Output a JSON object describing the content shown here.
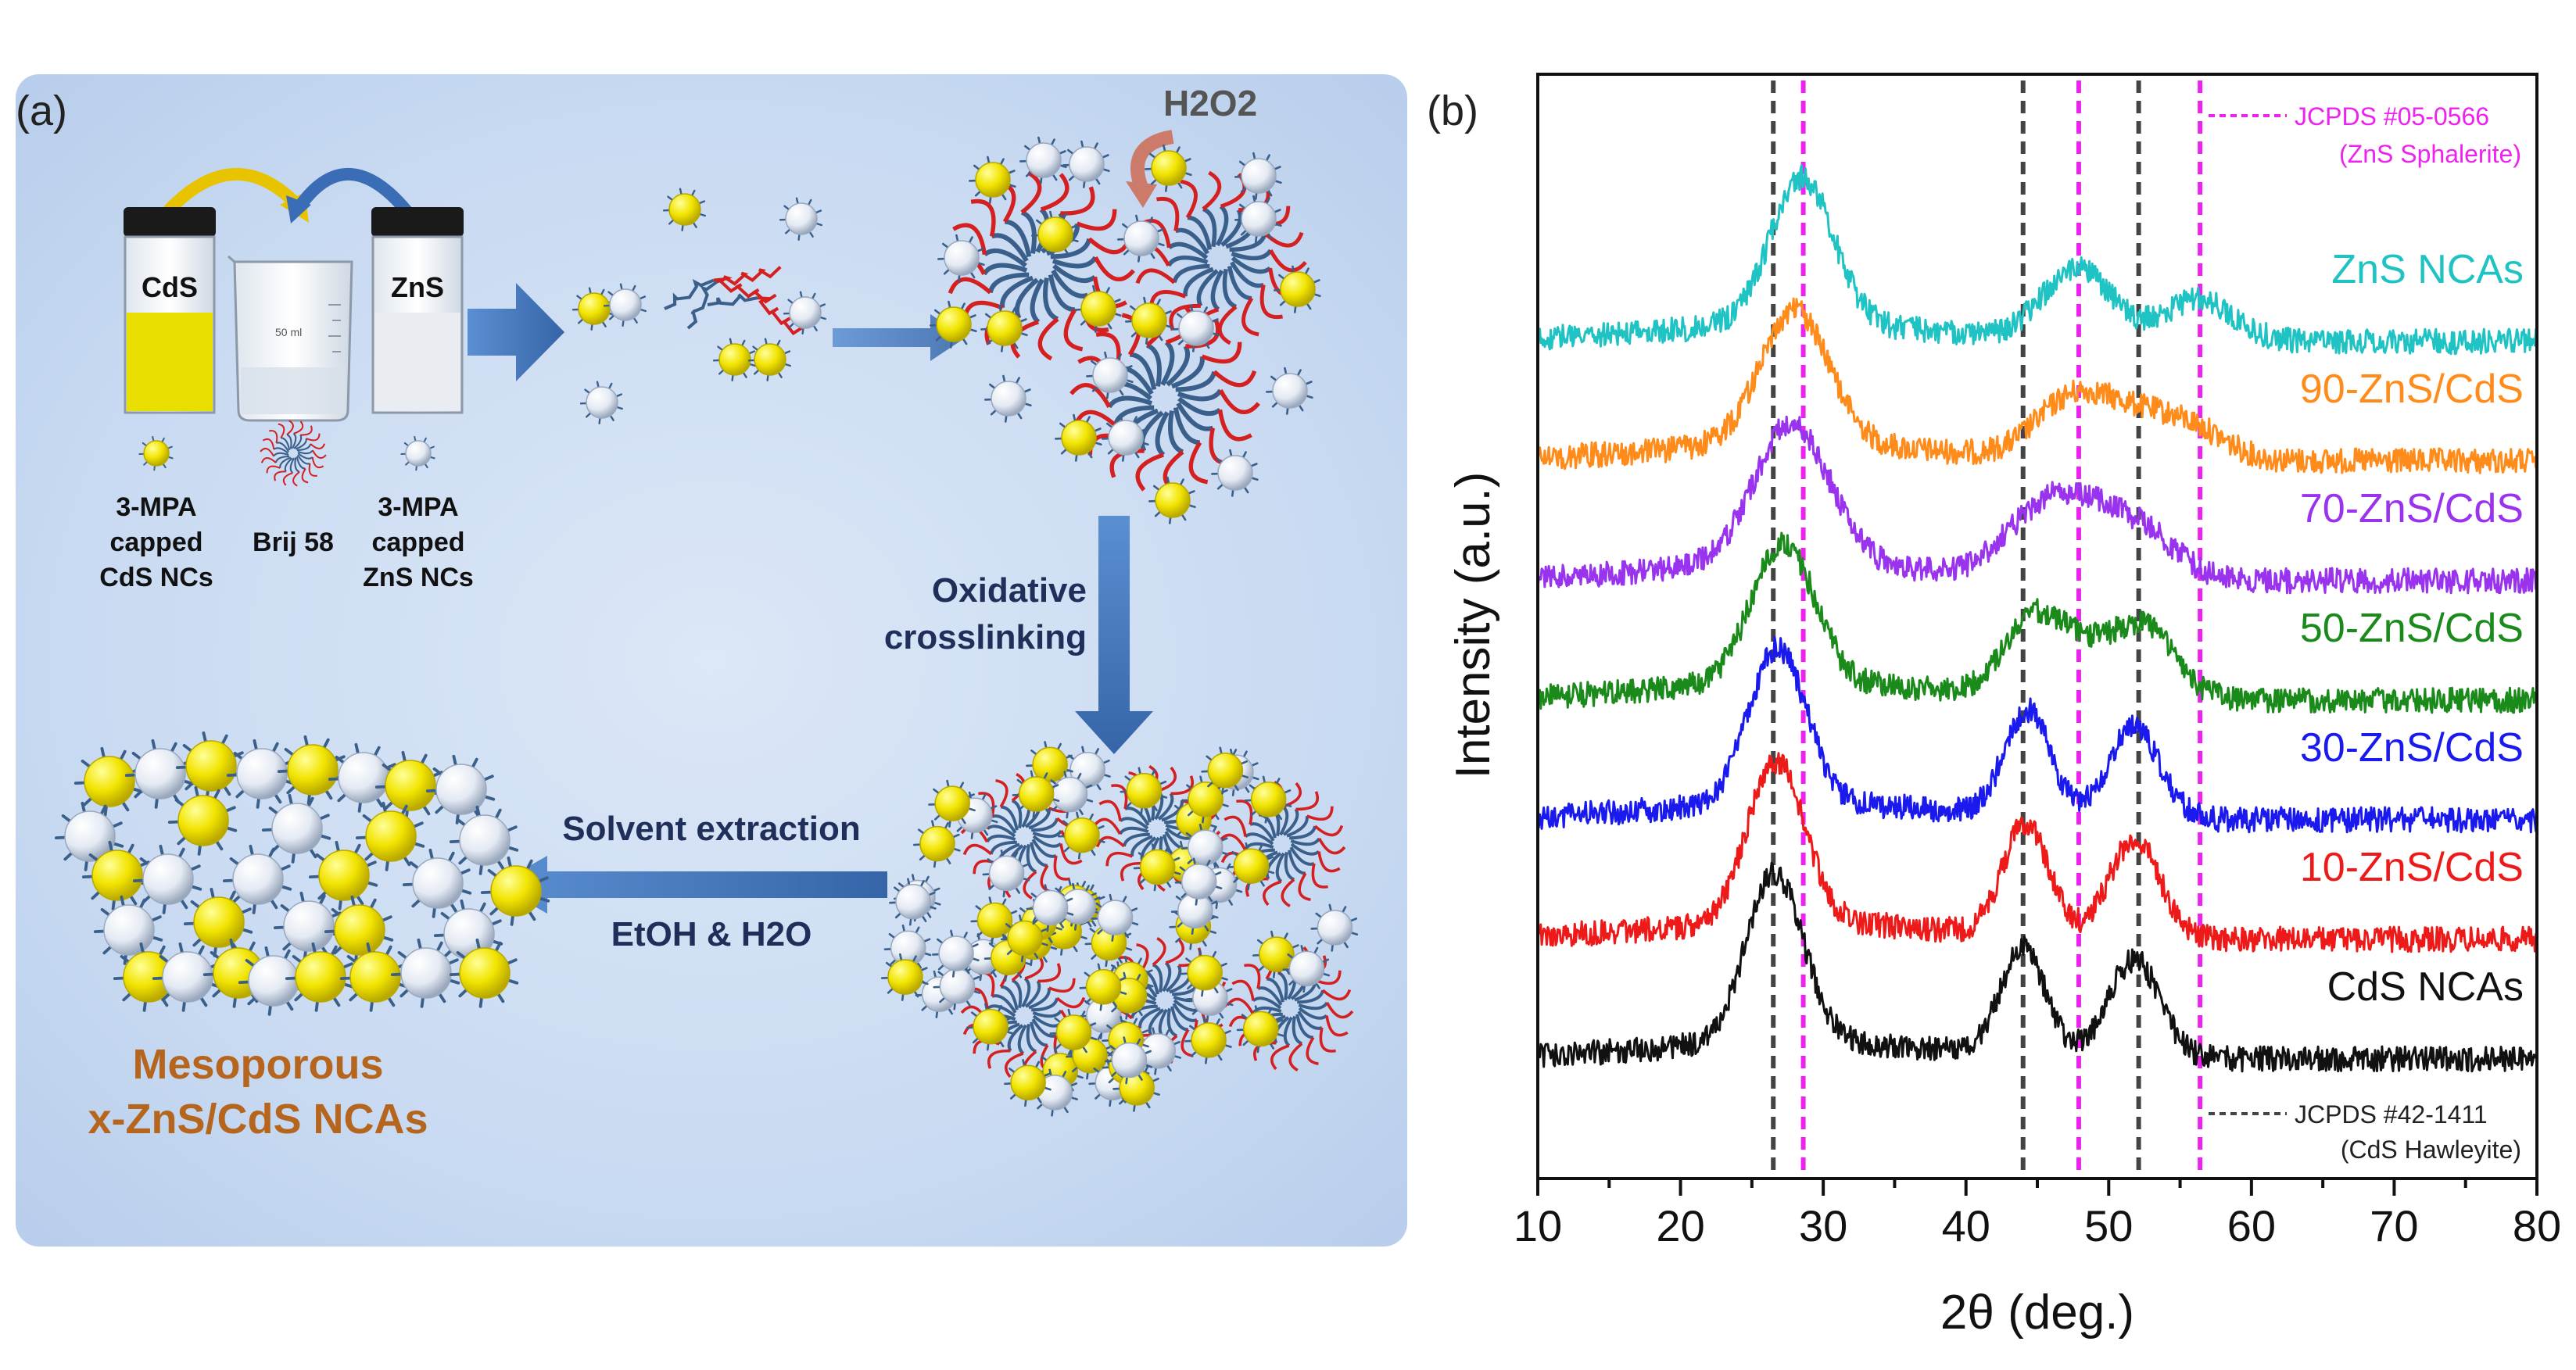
{
  "panel_a": {
    "label": "(a)",
    "oxidant": "H2O2",
    "vials": {
      "cds": "CdS",
      "zns": "ZnS",
      "beaker_volume": "50 ml"
    },
    "legend": {
      "cds_nc": [
        "3-MPA",
        "capped",
        "CdS NCs"
      ],
      "brij": "Brij 58",
      "zns_nc": [
        "3-MPA",
        "capped",
        "ZnS NCs"
      ]
    },
    "step_crosslink": [
      "Oxidative",
      "crosslinking"
    ],
    "step_extract": "Solvent extraction",
    "step_solvents": "EtOH & H2O",
    "product": [
      "Mesoporous",
      "x-ZnS/CdS NCAs"
    ],
    "colors": {
      "cds_particle": "#f2e400",
      "zns_particle": "#eef2f8",
      "polymer_red": "#d42020",
      "polymer_blue": "#3a5f8a",
      "arrow": "#3f6fae",
      "text_navy": "#1f2f5a",
      "product_text": "#b5651d"
    }
  },
  "chart_data": {
    "type": "line",
    "panel_label": "(b)",
    "title": "",
    "xlabel": "2θ (deg.)",
    "ylabel": "Intensity (a.u.)",
    "xlim": [
      10,
      80
    ],
    "xticks": [
      "10",
      "20",
      "30",
      "40",
      "50",
      "60",
      "70",
      "80"
    ],
    "yticks": "none",
    "grid": false,
    "series": [
      {
        "name": "ZnS NCAs",
        "color": "#1fc3c3",
        "offset": 6,
        "peaks": [
          [
            28.5,
            1.05,
            2.2
          ],
          [
            47.8,
            0.5,
            2.4
          ],
          [
            56.3,
            0.3,
            2.4
          ]
        ]
      },
      {
        "name": "90-ZnS/CdS",
        "color": "#ff8c1a",
        "offset": 5,
        "peaks": [
          [
            28.0,
            0.95,
            2.4
          ],
          [
            47.5,
            0.42,
            2.6
          ],
          [
            52.0,
            0.25,
            2.5
          ],
          [
            56.0,
            0.2,
            2.4
          ]
        ]
      },
      {
        "name": "70-ZnS/CdS",
        "color": "#9933ee",
        "offset": 4,
        "peaks": [
          [
            27.8,
            1.0,
            2.6
          ],
          [
            44.5,
            0.3,
            2.4
          ],
          [
            48.0,
            0.45,
            2.6
          ],
          [
            52.5,
            0.3,
            2.4
          ]
        ]
      },
      {
        "name": "50-ZnS/CdS",
        "color": "#1a8a1a",
        "offset": 3,
        "peaks": [
          [
            27.2,
            1.0,
            2.2
          ],
          [
            44.5,
            0.5,
            2.0
          ],
          [
            48.0,
            0.3,
            2.2
          ],
          [
            52.5,
            0.5,
            2.2
          ]
        ]
      },
      {
        "name": "30-ZnS/CdS",
        "color": "#1a1aee",
        "offset": 2,
        "peaks": [
          [
            26.8,
            1.1,
            2.0
          ],
          [
            44.3,
            0.75,
            1.6
          ],
          [
            51.8,
            0.65,
            1.8
          ]
        ]
      },
      {
        "name": "10-ZnS/CdS",
        "color": "#ee1a1a",
        "offset": 1,
        "peaks": [
          [
            26.7,
            1.15,
            2.0
          ],
          [
            44.2,
            0.8,
            1.6
          ],
          [
            51.8,
            0.7,
            1.8
          ]
        ]
      },
      {
        "name": "CdS NCAs",
        "color": "#111111",
        "offset": 0,
        "peaks": [
          [
            26.6,
            1.2,
            2.0
          ],
          [
            44.0,
            0.75,
            1.6
          ],
          [
            51.8,
            0.7,
            1.8
          ]
        ]
      }
    ],
    "reference_lines": [
      {
        "name": "JCPDS #42-1411",
        "phase": "(CdS Hawleyite)",
        "style": "dashed",
        "color": "#444444",
        "positions": [
          26.5,
          44.0,
          52.1
        ]
      },
      {
        "name": "JCPDS #05-0566",
        "phase": "(ZnS Sphalerite)",
        "style": "dashed",
        "color": "#ee22ee",
        "positions": [
          28.6,
          47.9,
          56.4
        ]
      }
    ]
  }
}
